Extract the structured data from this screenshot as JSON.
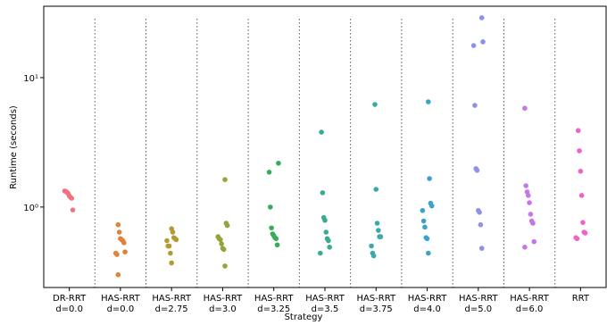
{
  "chart_data": {
    "type": "strip",
    "xlabel": "Strategy",
    "ylabel": "Runtime (seconds)",
    "categories": [
      "DR-RRT\nd=0.0",
      "HAS-RRT\nd=0.0",
      "HAS-RRT\nd=2.75",
      "HAS-RRT\nd=3.0",
      "HAS-RRT\nd=3.25",
      "HAS-RRT\nd=3.5",
      "HAS-RRT\nd=3.75",
      "HAS-RRT\nd=4.0",
      "HAS-RRT\nd=5.0",
      "HAS-RRT\nd=6.0",
      "RRT"
    ],
    "colors": [
      "#f0727f",
      "#e0823a",
      "#b49a32",
      "#93a53a",
      "#36ad5a",
      "#38ab92",
      "#39a9a9",
      "#3aa2cc",
      "#8d90ec",
      "#c676e6",
      "#ec64c8"
    ],
    "values": [
      [
        1.33,
        1.32,
        1.3,
        1.27,
        1.22,
        1.19,
        1.17,
        0.95
      ],
      [
        0.73,
        0.64,
        0.57,
        0.56,
        0.55,
        0.53,
        0.45,
        0.44,
        0.43,
        0.3
      ],
      [
        0.68,
        0.64,
        0.58,
        0.57,
        0.56,
        0.55,
        0.5,
        0.5,
        0.44,
        0.37
      ],
      [
        1.63,
        0.75,
        0.72,
        0.59,
        0.57,
        0.56,
        0.52,
        0.48,
        0.47,
        0.35
      ],
      [
        2.18,
        1.86,
        1.0,
        0.69,
        0.62,
        0.6,
        0.58,
        0.57,
        0.51
      ],
      [
        3.79,
        1.29,
        0.83,
        0.79,
        0.64,
        0.57,
        0.55,
        0.49,
        0.44
      ],
      [
        6.2,
        1.37,
        0.75,
        0.66,
        0.59,
        0.59,
        0.5,
        0.44,
        0.42
      ],
      [
        6.5,
        1.66,
        1.07,
        1.02,
        0.94,
        0.78,
        0.7,
        0.58,
        0.57,
        0.44
      ],
      [
        29,
        18.9,
        17.7,
        6.1,
        1.98,
        1.92,
        0.94,
        0.91,
        0.73,
        0.48
      ],
      [
        5.8,
        1.46,
        1.31,
        1.23,
        1.08,
        0.88,
        0.78,
        0.75,
        0.54,
        0.49
      ],
      [
        3.9,
        2.72,
        1.89,
        1.23,
        0.76,
        0.64,
        0.63,
        0.58,
        0.57
      ]
    ],
    "ylog": true,
    "ylim": [
      0.239,
      35.6
    ],
    "yticks": [
      {
        "value": 1,
        "label": "10⁰"
      },
      {
        "value": 10,
        "label": "10¹"
      }
    ]
  }
}
